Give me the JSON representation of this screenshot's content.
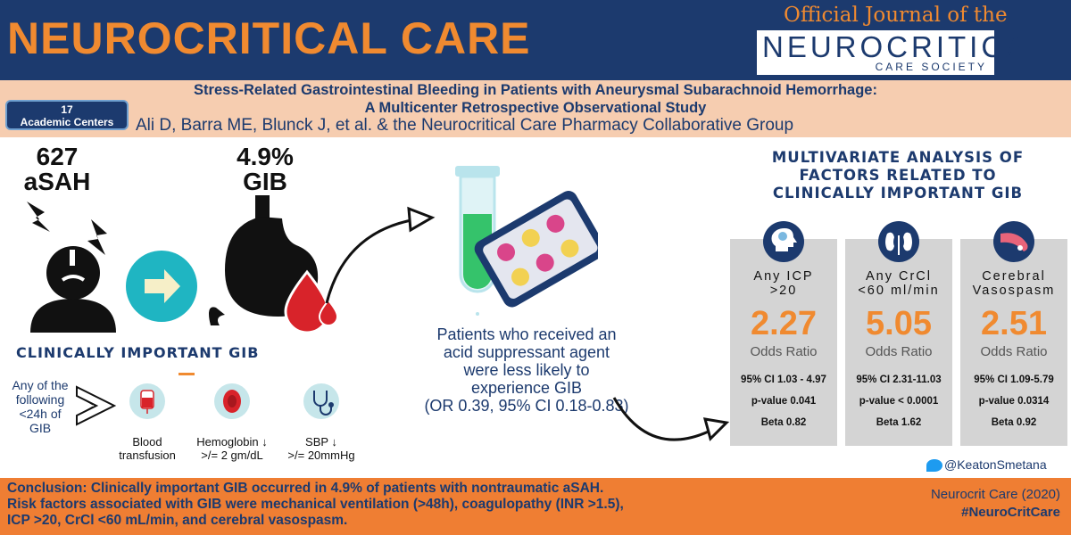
{
  "header": {
    "journal_title": "NEUROCRITICAL CARE",
    "official_line": "Official Journal of the",
    "society_name": "NEUROCRITICAL",
    "society_sub": "CARE SOCIETY"
  },
  "study": {
    "title_line1": "Stress-Related Gastrointestinal Bleeding in Patients with Aneurysmal Subarachnoid Hemorrhage:",
    "title_line2": "A Multicenter Retrospective Observational Study",
    "authors": "Ali D, Barra ME, Blunck J, et al. & the Neurocritical Care Pharmacy Collaborative Group",
    "centers_count": "17",
    "centers_label": "Academic Centers"
  },
  "stats": {
    "patients_n": "627",
    "patients_label": "aSAH",
    "gib_pct": "4.9%",
    "gib_label": "GIB"
  },
  "criteria": {
    "heading": "CLINICALLY IMPORTANT GIB",
    "label": "Any of the following <24h of GIB",
    "items": [
      {
        "line1": "Blood",
        "line2": "transfusion"
      },
      {
        "line1": "Hemoglobin ↓",
        "line2": ">/= 2 gm/dL"
      },
      {
        "line1": "SBP ↓",
        "line2": ">/= 20mmHg"
      }
    ]
  },
  "middle": {
    "line1": "Patients who received an",
    "line2": "acid suppressant agent",
    "line3": "were less likely to",
    "line4": "experience GIB",
    "line5": "(OR 0.39, 95% CI 0.18-0.83)"
  },
  "analysis": {
    "title_line1": "MULTIVARIATE ANALYSIS OF",
    "title_line2": "FACTORS RELATED TO",
    "title_line3": "CLINICALLY IMPORTANT GIB",
    "factors": [
      {
        "head1": "Any ICP",
        "head2": ">20",
        "or": "2.27",
        "or_label": "Odds Ratio",
        "ci": "95% CI 1.03 - 4.97",
        "p": "p-value 0.041",
        "beta": "Beta 0.82"
      },
      {
        "head1": "Any CrCl",
        "head2": "<60 ml/min",
        "or": "5.05",
        "or_label": "Odds Ratio",
        "ci": "95% CI 2.31-11.03",
        "p": "p-value  < 0.0001",
        "beta": "Beta 1.62"
      },
      {
        "head1": "Cerebral",
        "head2": "Vasospasm",
        "or": "2.51",
        "or_label": "Odds Ratio",
        "ci": "95% CI 1.09-5.79",
        "p": "p-value 0.0314",
        "beta": "Beta 0.92"
      }
    ]
  },
  "social": {
    "handle": "@KeatonSmetana"
  },
  "footer": {
    "conclusion_line1": "Conclusion: Clinically important GIB occurred in 4.9% of patients with nontraumatic aSAH.",
    "conclusion_line2": "Risk factors associated with GIB were mechanical ventilation (>48h), coagulopathy (INR >1.5),",
    "conclusion_line3": "ICP >20, CrCl <60 mL/min, and cerebral vasospasm.",
    "citation": "Neurocrit Care (2020)",
    "hashtag": "#NeuroCritCare"
  },
  "colors": {
    "navy": "#1c3a6e",
    "orange": "#f08a30",
    "peach": "#f6cdb0",
    "teal": "#1fb5c2",
    "panel_gray": "#d4d4d4",
    "blood_red": "#d8232a"
  }
}
